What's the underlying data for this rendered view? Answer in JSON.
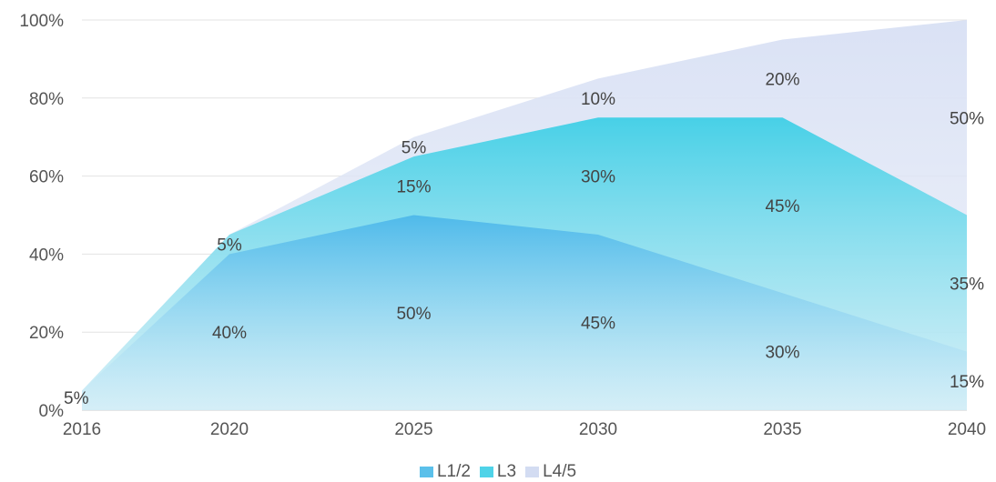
{
  "chart_data": {
    "type": "area",
    "stacked": true,
    "x": [
      2016,
      2020,
      2025,
      2030,
      2035,
      2040
    ],
    "xticks": [
      "2016",
      "2020",
      "2025",
      "2030",
      "2035",
      "2040"
    ],
    "ylim": [
      0,
      100
    ],
    "yticks": [
      "0%",
      "20%",
      "40%",
      "60%",
      "80%",
      "100%"
    ],
    "grid": true,
    "legend_position": "bottom",
    "series": [
      {
        "name": "L1/2",
        "values": [
          5,
          40,
          50,
          45,
          30,
          15
        ],
        "labels": [
          "5%",
          "40%",
          "50%",
          "45%",
          "30%",
          "15%"
        ],
        "color": "#5bc0ea"
      },
      {
        "name": "L3",
        "values": [
          0,
          5,
          15,
          30,
          45,
          35
        ],
        "labels": [
          "",
          "5%",
          "15%",
          "30%",
          "45%",
          "35%"
        ],
        "color": "#4fd3e8"
      },
      {
        "name": "L4/5",
        "values": [
          0,
          0,
          5,
          10,
          20,
          50
        ],
        "labels": [
          "",
          "",
          "5%",
          "10%",
          "20%",
          "50%"
        ],
        "color": "#d3dcf2"
      }
    ]
  }
}
